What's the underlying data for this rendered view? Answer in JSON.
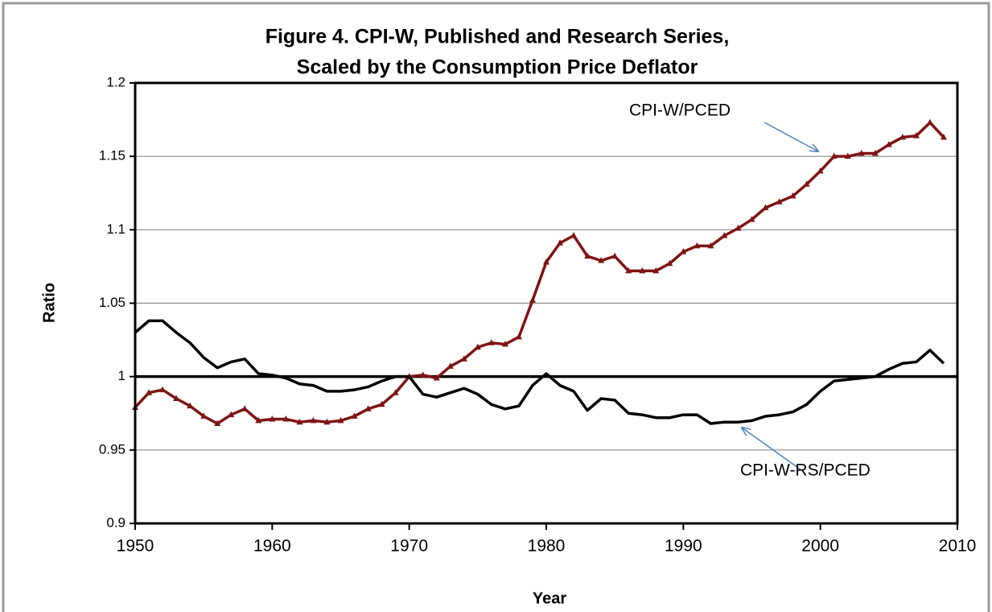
{
  "chart_data": {
    "type": "line",
    "title": [
      "Figure 4. CPI-W, Published and Research Series,",
      "Scaled by the Consumption Price Deflator"
    ],
    "xlabel": "Year",
    "ylabel": "Ratio",
    "x": [
      1950,
      1951,
      1952,
      1953,
      1954,
      1955,
      1956,
      1957,
      1958,
      1959,
      1960,
      1961,
      1962,
      1963,
      1964,
      1965,
      1966,
      1967,
      1968,
      1969,
      1970,
      1971,
      1972,
      1973,
      1974,
      1975,
      1976,
      1977,
      1978,
      1979,
      1980,
      1981,
      1982,
      1983,
      1984,
      1985,
      1986,
      1987,
      1988,
      1989,
      1990,
      1991,
      1992,
      1993,
      1994,
      1995,
      1996,
      1997,
      1998,
      1999,
      2000,
      2001,
      2002,
      2003,
      2004,
      2005,
      2006,
      2007,
      2008,
      2009
    ],
    "series": [
      {
        "name": "CPI-W/PCED",
        "color": "#7f1414",
        "marker": "triangle",
        "values": [
          0.979,
          0.989,
          0.991,
          0.985,
          0.98,
          0.973,
          0.968,
          0.974,
          0.978,
          0.97,
          0.971,
          0.971,
          0.969,
          0.97,
          0.969,
          0.97,
          0.973,
          0.978,
          0.981,
          0.989,
          1.0,
          1.001,
          0.999,
          1.007,
          1.012,
          1.02,
          1.023,
          1.022,
          1.027,
          1.052,
          1.078,
          1.091,
          1.096,
          1.082,
          1.079,
          1.082,
          1.072,
          1.072,
          1.072,
          1.077,
          1.085,
          1.089,
          1.089,
          1.096,
          1.101,
          1.107,
          1.115,
          1.119,
          1.123,
          1.131,
          1.14,
          1.15,
          1.15,
          1.152,
          1.152,
          1.158,
          1.163,
          1.164,
          1.173,
          1.163
        ]
      },
      {
        "name": "CPI-W-RS/PCED",
        "color": "#000000",
        "values": [
          1.03,
          1.038,
          1.038,
          1.03,
          1.023,
          1.013,
          1.006,
          1.01,
          1.012,
          1.002,
          1.001,
          0.999,
          0.995,
          0.994,
          0.99,
          0.99,
          0.991,
          0.993,
          0.997,
          1.0,
          1.0,
          0.988,
          0.986,
          0.989,
          0.992,
          0.988,
          0.981,
          0.978,
          0.98,
          0.994,
          1.002,
          0.994,
          0.99,
          0.977,
          0.985,
          0.984,
          0.975,
          0.974,
          0.972,
          0.972,
          0.974,
          0.974,
          0.968,
          0.969,
          0.969,
          0.97,
          0.973,
          0.974,
          0.976,
          0.981,
          0.99,
          0.997,
          0.998,
          0.999,
          1.0,
          1.005,
          1.009,
          1.01,
          1.018,
          1.009
        ]
      }
    ],
    "hline": 1,
    "xlim": [
      1950,
      2010
    ],
    "xticks": [
      1950,
      1960,
      1970,
      1980,
      1990,
      2000,
      2010
    ],
    "ylim": [
      0.9,
      1.2
    ],
    "yticks": [
      0.9,
      0.95,
      1,
      1.05,
      1.1,
      1.15,
      1.2
    ],
    "grid": true
  }
}
